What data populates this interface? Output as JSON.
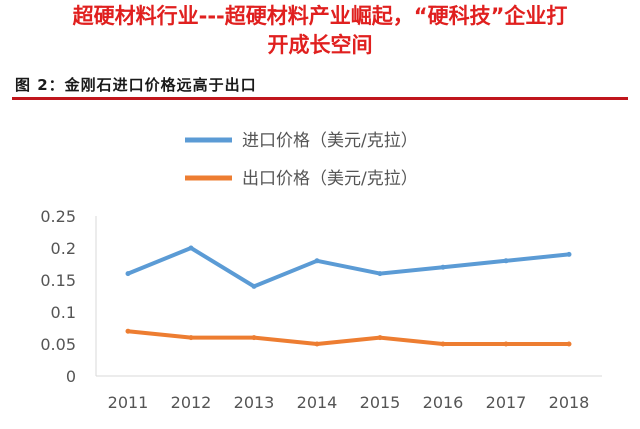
{
  "headline": {
    "line1": "超硬材料行业---超硬材料产业崛起，“硬科技”企业打",
    "line2": "开成长空间"
  },
  "figure": {
    "caption": "图 2：金刚石进口价格远高于出口"
  },
  "chart_data": {
    "type": "line",
    "title": "",
    "xlabel": "",
    "ylabel": "",
    "categories": [
      "2011",
      "2012",
      "2013",
      "2014",
      "2015",
      "2016",
      "2017",
      "2018"
    ],
    "series": [
      {
        "name": "进口价格（美元/克拉）",
        "color": "#5b9bd5",
        "values": [
          0.16,
          0.2,
          0.14,
          0.18,
          0.16,
          0.17,
          0.18,
          0.19
        ]
      },
      {
        "name": "出口价格（美元/克拉）",
        "color": "#ed7d31",
        "values": [
          0.07,
          0.06,
          0.06,
          0.05,
          0.06,
          0.05,
          0.05,
          0.05
        ]
      }
    ],
    "ylim": [
      0,
      0.25
    ],
    "yticks": [
      "0",
      "0.05",
      "0.1",
      "0.15",
      "0.2",
      "0.25"
    ],
    "grid": false,
    "legend_position": "top"
  }
}
